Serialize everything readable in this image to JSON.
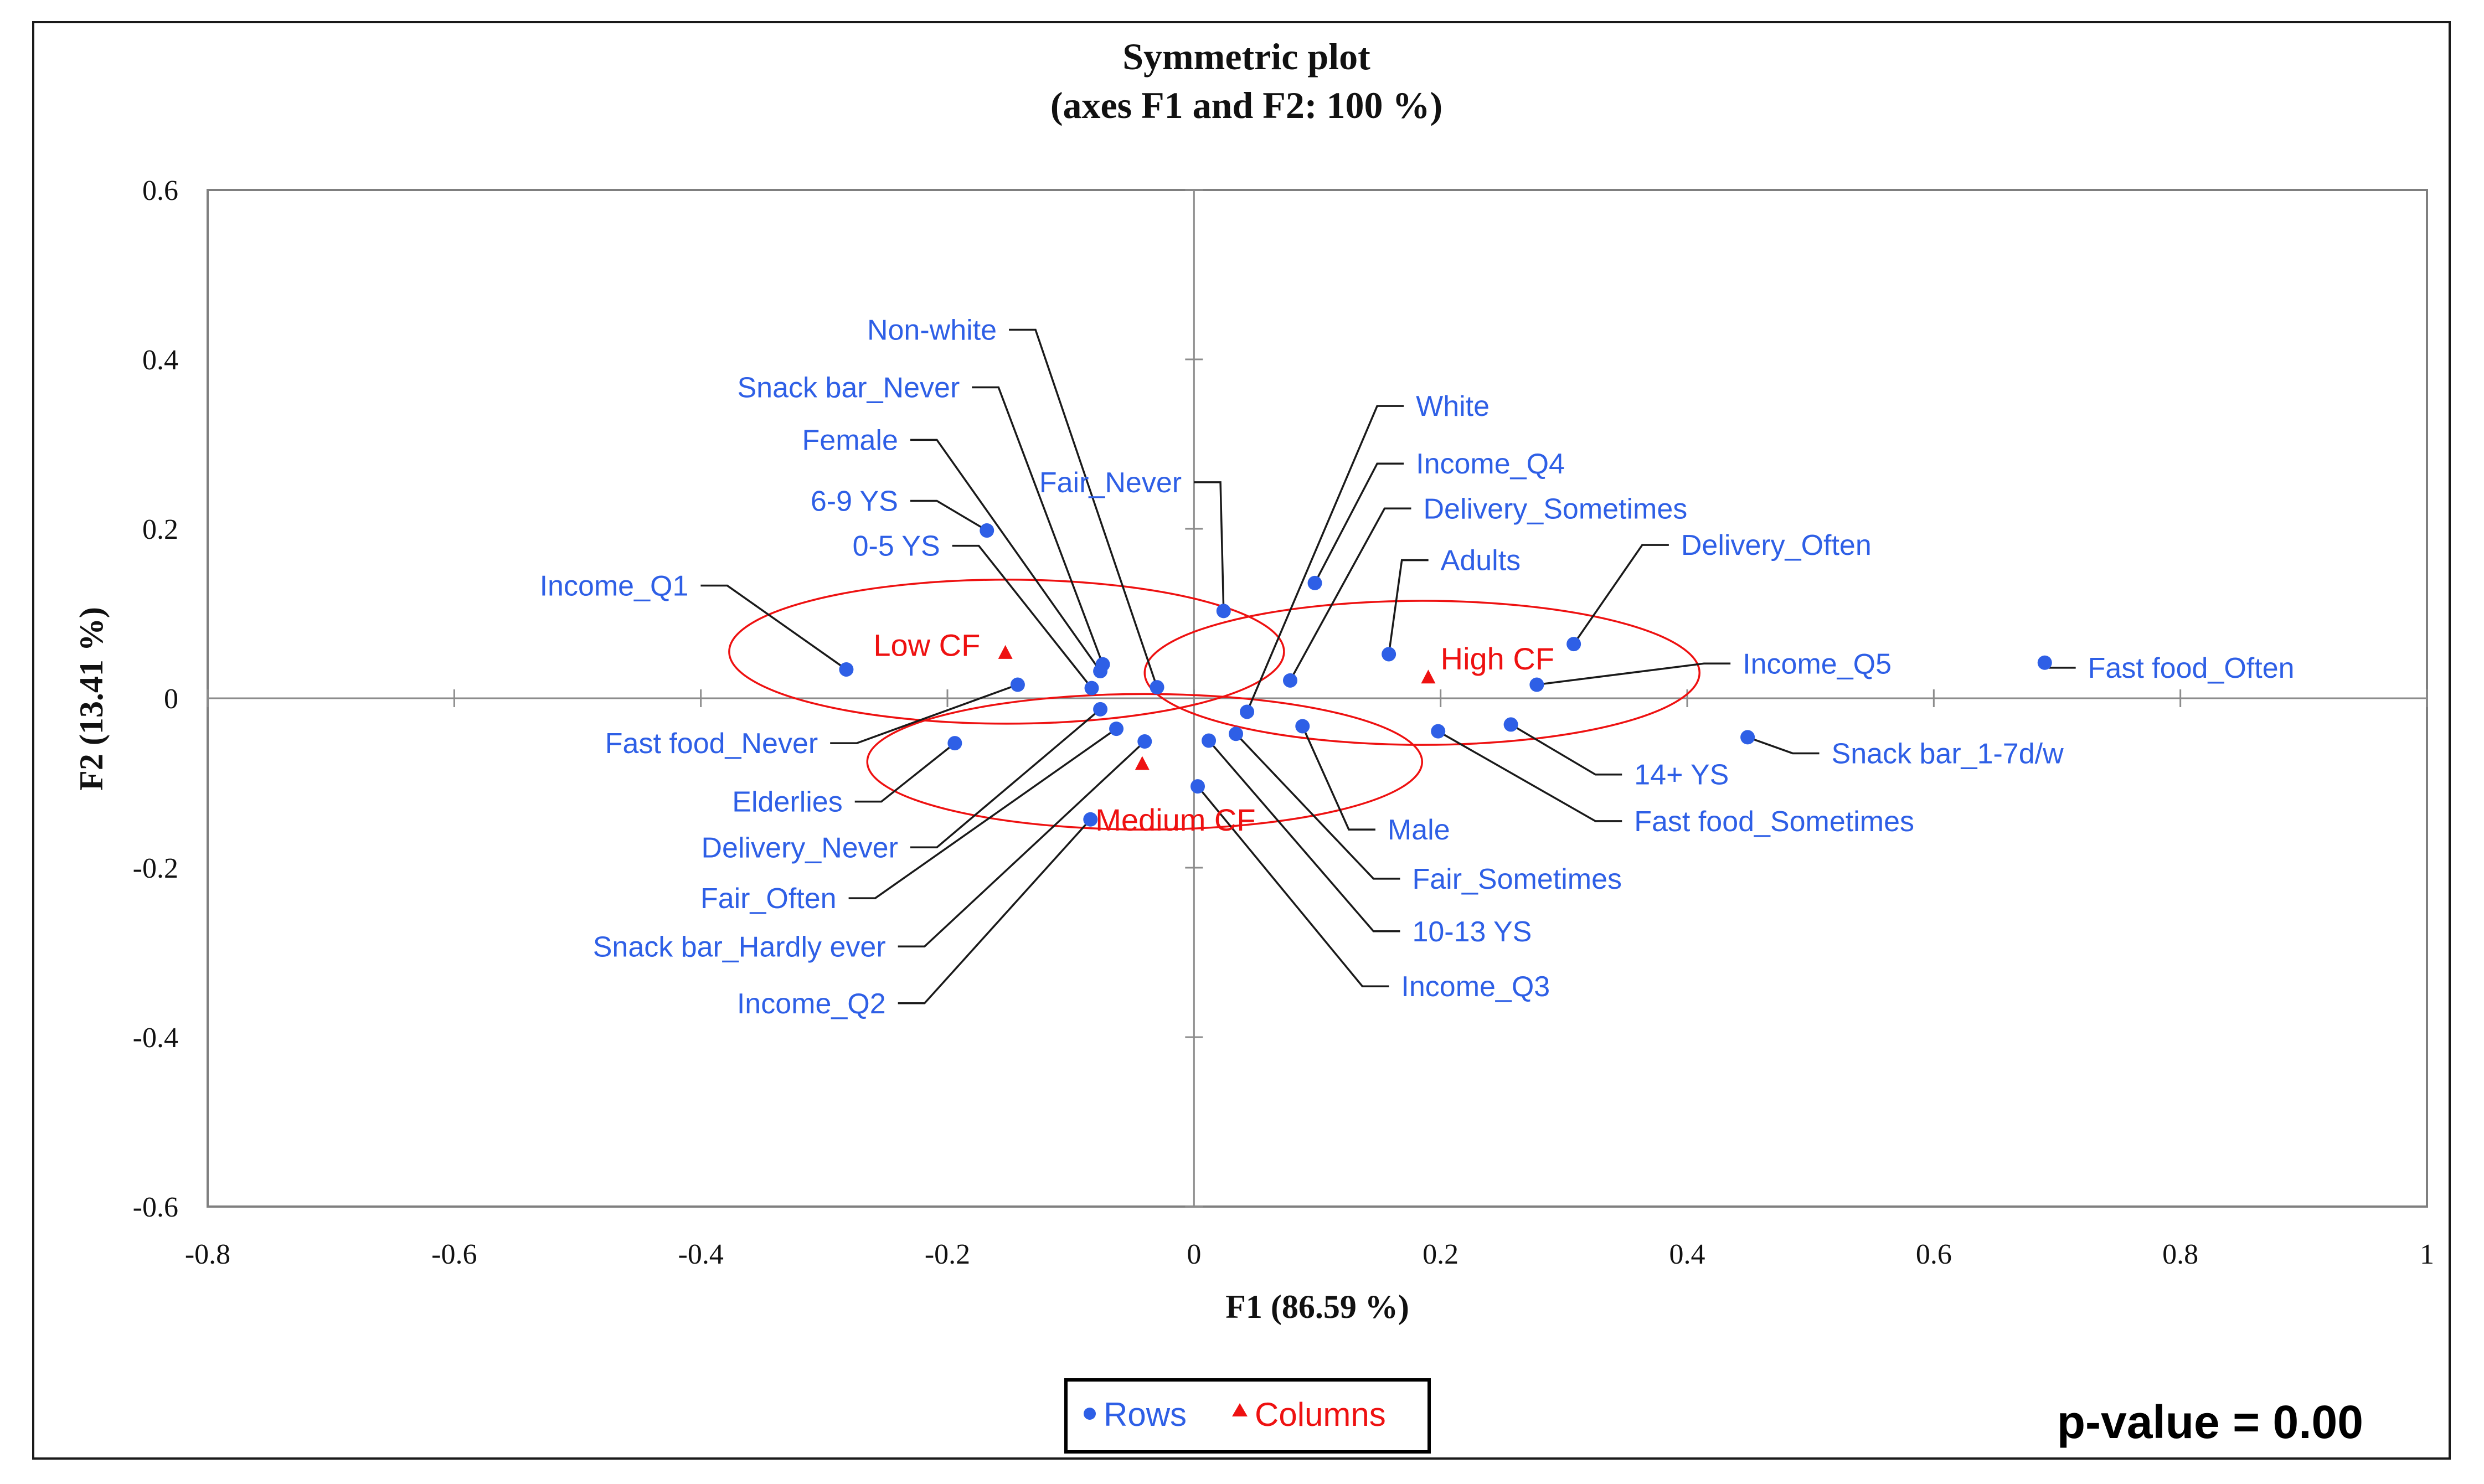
{
  "chart_data": {
    "type": "scatter",
    "title": "Symmetric plot",
    "subtitle": "(axes F1 and F2: 100 %)",
    "xlabel": "F1 (86.59 %)",
    "ylabel": "F2 (13.41 %)",
    "xlim": [
      -0.8,
      1
    ],
    "ylim": [
      -0.6,
      0.6
    ],
    "x_ticks": [
      -0.8,
      -0.6,
      -0.4,
      -0.2,
      0,
      0.2,
      0.4,
      0.6,
      0.8,
      1
    ],
    "x_tick_labels": [
      "-0.8",
      "-0.6",
      "-0.4",
      "-0.2",
      "0",
      "0.2",
      "0.4",
      "0.6",
      "0.8",
      "1"
    ],
    "y_ticks": [
      -0.6,
      -0.4,
      -0.2,
      0,
      0.2,
      0.4,
      0.6
    ],
    "y_tick_labels": [
      "-0.6",
      "-0.4",
      "-0.2",
      "0",
      "0.2",
      "0.4",
      "0.6"
    ],
    "grid": false,
    "legend_position": "bottom-center",
    "series": [
      {
        "name": "Rows",
        "marker": "circle",
        "color": "#2e5fe6",
        "points": [
          {
            "label": "Non-white",
            "x": -0.03,
            "y": 0.013,
            "lx": -0.16,
            "ly": 0.435
          },
          {
            "label": "Snack bar_Never",
            "x": -0.074,
            "y": 0.04,
            "lx": -0.19,
            "ly": 0.367
          },
          {
            "label": "Female",
            "x": -0.076,
            "y": 0.032,
            "lx": -0.24,
            "ly": 0.305
          },
          {
            "label": "6-9 YS",
            "x": -0.168,
            "y": 0.198,
            "lx": -0.24,
            "ly": 0.233
          },
          {
            "label": "0-5 YS",
            "x": -0.083,
            "y": 0.012,
            "lx": -0.206,
            "ly": 0.18
          },
          {
            "label": "Income_Q1",
            "x": -0.282,
            "y": 0.034,
            "lx": -0.41,
            "ly": 0.133
          },
          {
            "label": "Fast food_Never",
            "x": -0.143,
            "y": 0.016,
            "lx": -0.305,
            "ly": -0.053
          },
          {
            "label": "Elderlies",
            "x": -0.194,
            "y": -0.053,
            "lx": -0.285,
            "ly": -0.122
          },
          {
            "label": "Delivery_Never",
            "x": -0.076,
            "y": -0.013,
            "lx": -0.24,
            "ly": -0.176
          },
          {
            "label": "Fair_Often",
            "x": -0.063,
            "y": -0.036,
            "lx": -0.29,
            "ly": -0.236
          },
          {
            "label": "Snack bar_Hardly ever",
            "x": -0.04,
            "y": -0.051,
            "lx": -0.25,
            "ly": -0.293
          },
          {
            "label": "Income_Q2",
            "x": -0.084,
            "y": -0.143,
            "lx": -0.25,
            "ly": -0.36
          },
          {
            "label": "White",
            "x": 0.043,
            "y": -0.016,
            "lx": 0.18,
            "ly": 0.345
          },
          {
            "label": "Fair_Never",
            "x": 0.024,
            "y": 0.103,
            "lx": -0.01,
            "ly": 0.255
          },
          {
            "label": "Income_Q4",
            "x": 0.098,
            "y": 0.136,
            "lx": 0.18,
            "ly": 0.277
          },
          {
            "label": "Delivery_Sometimes",
            "x": 0.078,
            "y": 0.021,
            "lx": 0.186,
            "ly": 0.224
          },
          {
            "label": "Adults",
            "x": 0.158,
            "y": 0.052,
            "lx": 0.2,
            "ly": 0.163
          },
          {
            "label": "Delivery_Often",
            "x": 0.308,
            "y": 0.064,
            "lx": 0.395,
            "ly": 0.181
          },
          {
            "label": "Income_Q5",
            "x": 0.278,
            "y": 0.016,
            "lx": 0.445,
            "ly": 0.041
          },
          {
            "label": "Fast food_Often",
            "x": 0.69,
            "y": 0.042,
            "lx": 0.725,
            "ly": 0.036
          },
          {
            "label": "Snack bar_1-7d/w",
            "x": 0.449,
            "y": -0.046,
            "lx": 0.517,
            "ly": -0.065
          },
          {
            "label": "14+ YS",
            "x": 0.257,
            "y": -0.031,
            "lx": 0.357,
            "ly": -0.09
          },
          {
            "label": "Fast food_Sometimes",
            "x": 0.198,
            "y": -0.039,
            "lx": 0.357,
            "ly": -0.145
          },
          {
            "label": "Male",
            "x": 0.088,
            "y": -0.033,
            "lx": 0.157,
            "ly": -0.155
          },
          {
            "label": "Fair_Sometimes",
            "x": 0.034,
            "y": -0.042,
            "lx": 0.177,
            "ly": -0.213
          },
          {
            "label": "10-13 YS",
            "x": 0.012,
            "y": -0.05,
            "lx": 0.177,
            "ly": -0.275
          },
          {
            "label": "Income_Q3",
            "x": 0.003,
            "y": -0.104,
            "lx": 0.168,
            "ly": -0.34
          }
        ]
      },
      {
        "name": "Columns",
        "marker": "triangle",
        "color": "#ee1111",
        "points": [
          {
            "label": "Low CF",
            "x": -0.153,
            "y": 0.053,
            "lx": -0.26,
            "ly": 0.063
          },
          {
            "label": "High CF",
            "x": 0.19,
            "y": 0.024,
            "lx": 0.2,
            "ly": 0.047
          },
          {
            "label": "Medium CF",
            "x": -0.042,
            "y": -0.078,
            "lx": -0.08,
            "ly": -0.143
          }
        ]
      }
    ],
    "ellipses": [
      {
        "name": "Low CF",
        "cx": -0.152,
        "cy": 0.055,
        "rx": 0.225,
        "ry": 0.085
      },
      {
        "name": "High CF",
        "cx": 0.185,
        "cy": 0.03,
        "rx": 0.225,
        "ry": 0.085
      },
      {
        "name": "Medium CF",
        "cx": -0.04,
        "cy": -0.075,
        "rx": 0.225,
        "ry": 0.08
      }
    ]
  },
  "legend": {
    "rows_label": "Rows",
    "columns_label": "Columns",
    "rows_color": "#2e5fe6",
    "columns_color": "#ee1111"
  },
  "footer": {
    "p_value_text": "p-value = 0.00"
  }
}
